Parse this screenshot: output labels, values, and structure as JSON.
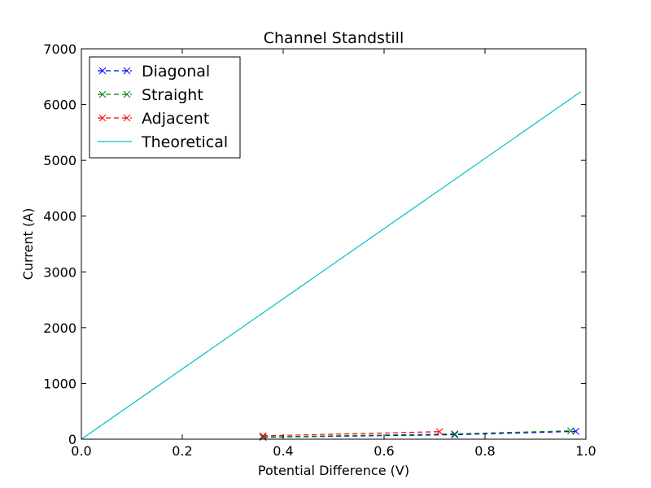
{
  "chart_data": {
    "type": "line",
    "title": "Channel Standstill",
    "xlabel": "Potential Difference (V)",
    "ylabel": "Current (A)",
    "xlim": [
      0.0,
      1.0
    ],
    "ylim": [
      0,
      7000
    ],
    "x_ticks": [
      0.0,
      0.2,
      0.4,
      0.6,
      0.8,
      1.0
    ],
    "x_tick_labels": [
      "0.0",
      "0.2",
      "0.4",
      "0.6",
      "0.8",
      "1.0"
    ],
    "y_ticks": [
      0,
      1000,
      2000,
      3000,
      4000,
      5000,
      6000,
      7000
    ],
    "y_tick_labels": [
      "0",
      "1000",
      "2000",
      "3000",
      "4000",
      "5000",
      "6000",
      "7000"
    ],
    "grid": false,
    "legend_position": "top-left",
    "series": [
      {
        "name": "Diagonal",
        "color": "#0000ff",
        "style": "dashed",
        "marker": "x",
        "x": [
          0.36,
          0.74,
          0.98
        ],
        "y": [
          35,
          80,
          140
        ]
      },
      {
        "name": "Straight",
        "color": "#008000",
        "style": "dashed",
        "marker": "x",
        "x": [
          0.36,
          0.74,
          0.97
        ],
        "y": [
          40,
          95,
          150
        ]
      },
      {
        "name": "Adjacent",
        "color": "#ff0000",
        "style": "dashed",
        "marker": "x",
        "x": [
          0.36,
          0.71
        ],
        "y": [
          60,
          135
        ]
      },
      {
        "name": "Theoretical",
        "color": "#00bfbf",
        "style": "solid",
        "marker": "none",
        "x": [
          0.0,
          0.99
        ],
        "y": [
          0,
          6230
        ]
      }
    ]
  }
}
